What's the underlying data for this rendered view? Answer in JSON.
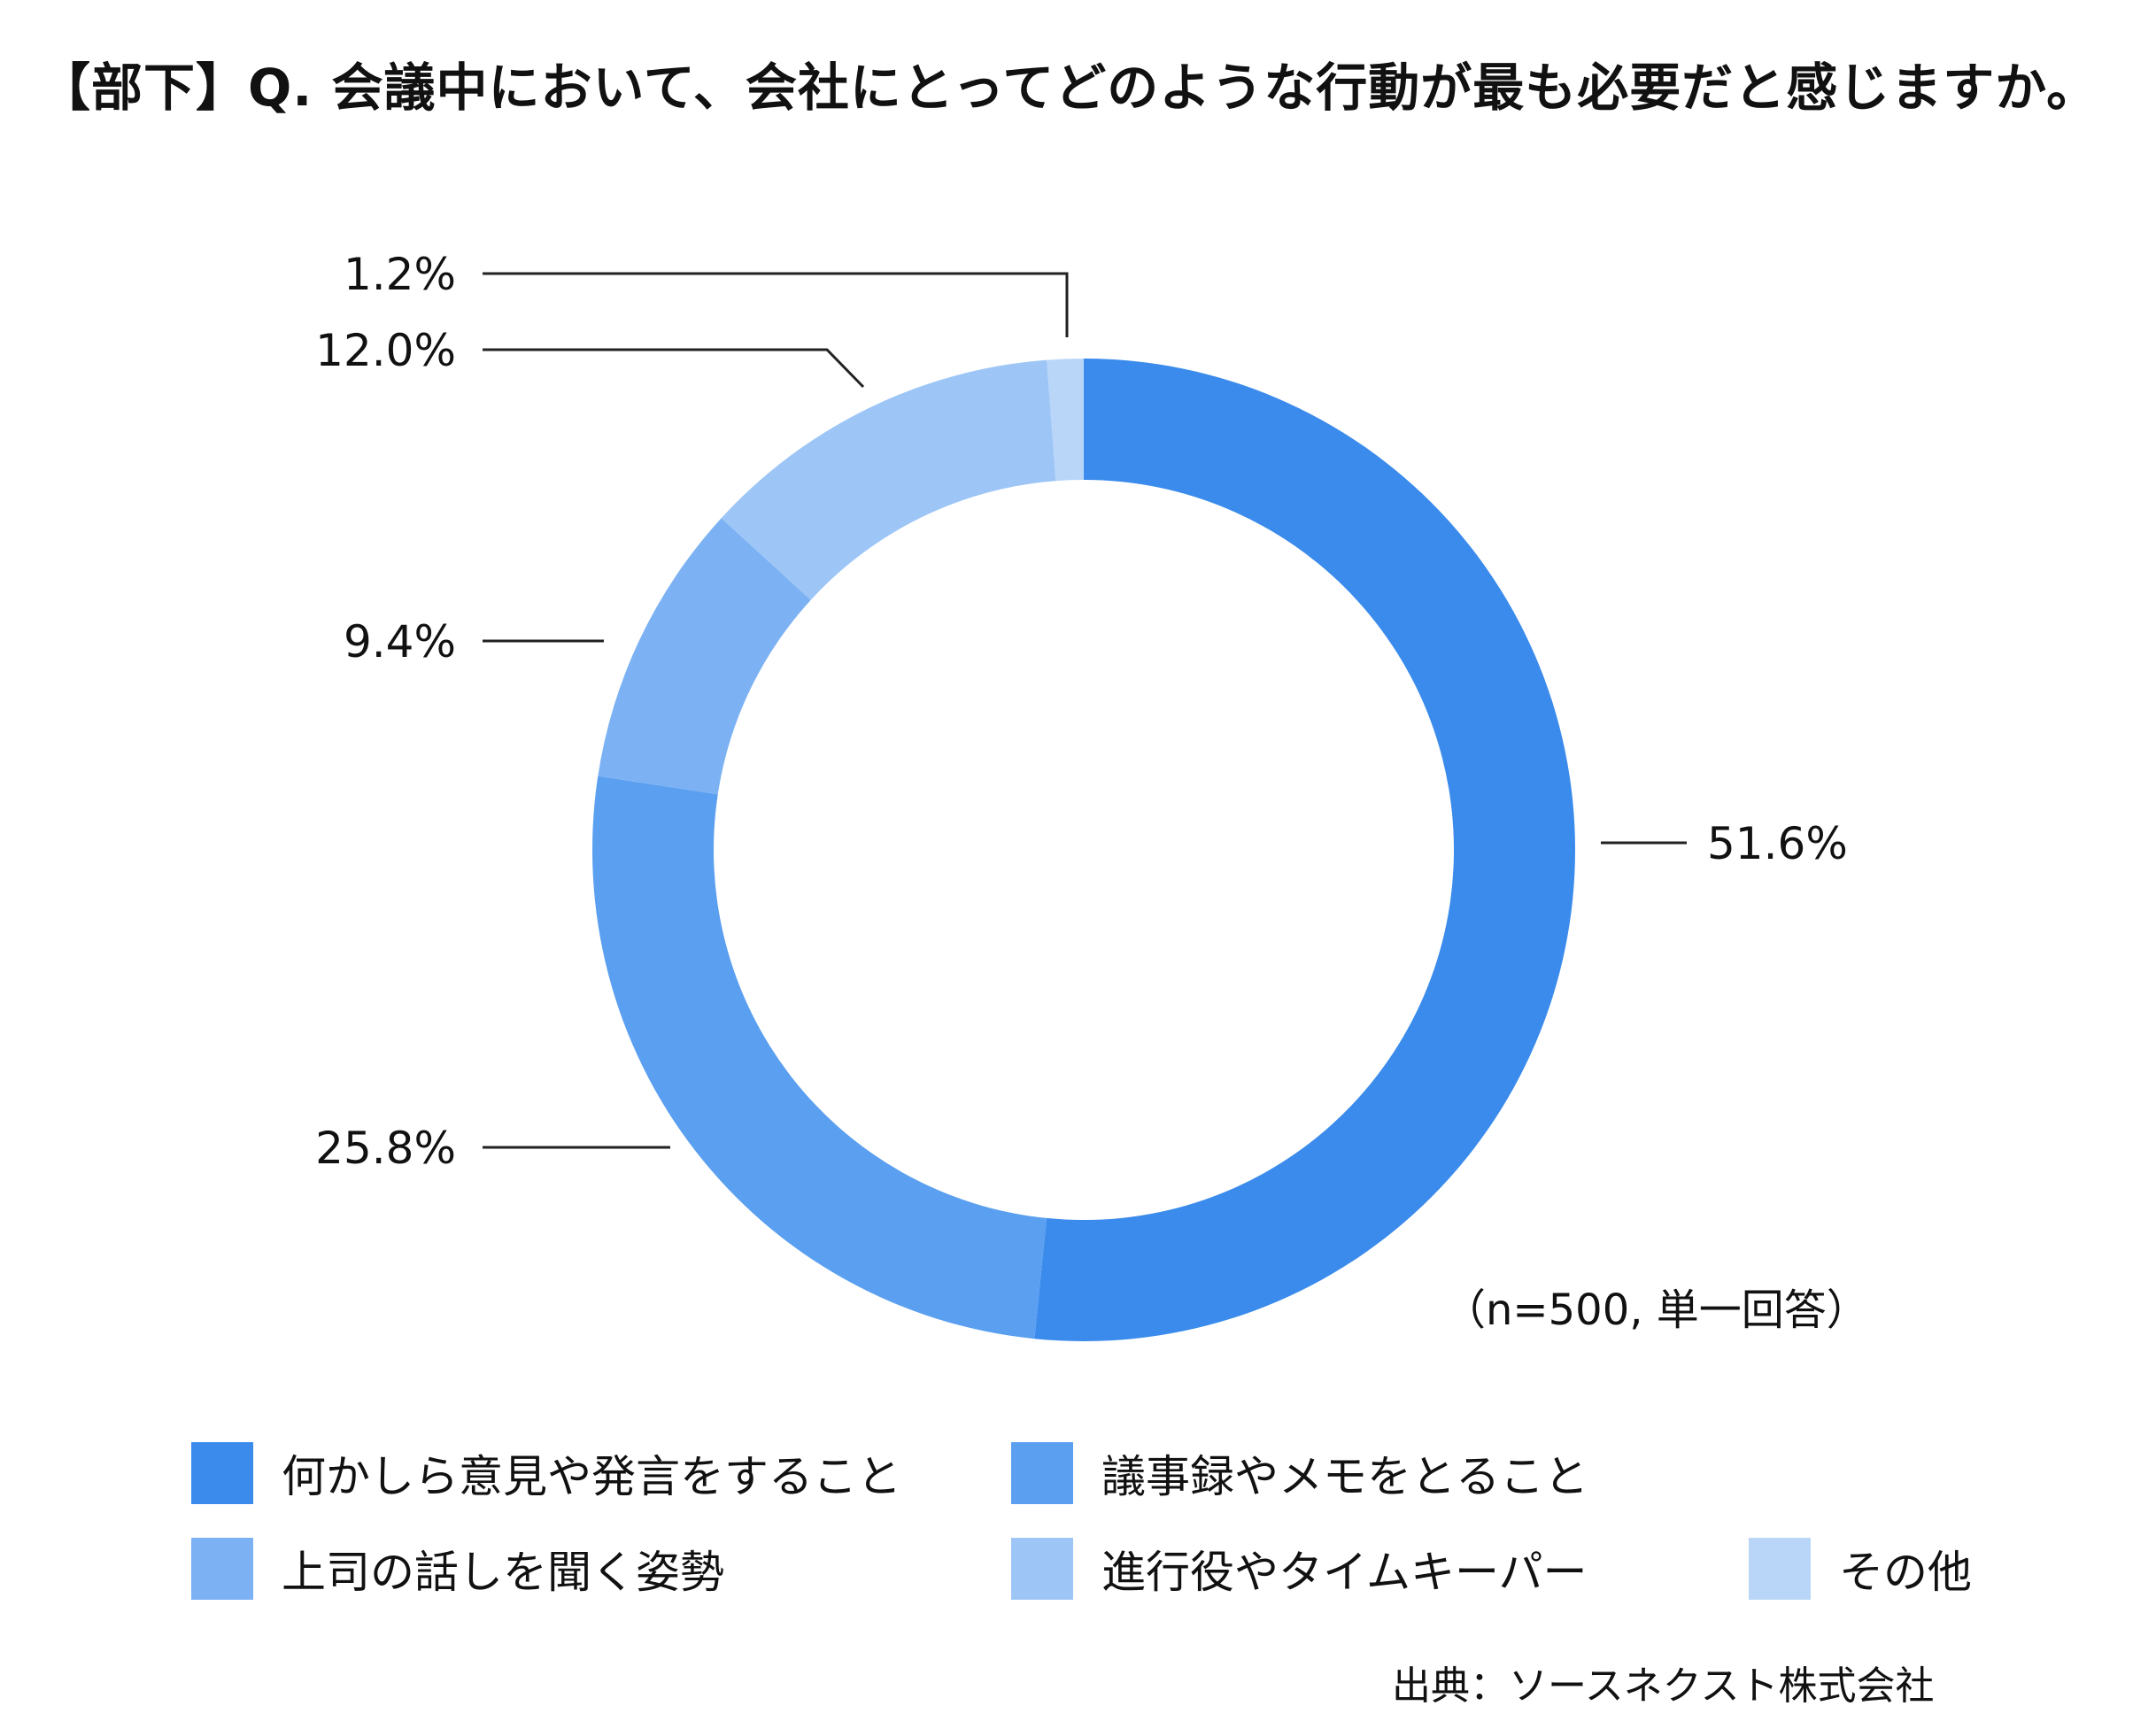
{
  "title": "【部下】Q. 会議中において、会社にとってどのような行動が最も必要だと感じますか。",
  "note": "（n=500, 単一回答）",
  "source": "出典：ソースネクスト株式会社",
  "chart_data": {
    "type": "pie",
    "donut": true,
    "title": "【部下】Q. 会議中において、会社にとってどのような行動が最も必要だと感じますか。",
    "unit": "%",
    "categories": [
      "何かしら意見や発言をすること",
      "議事録やメモをとること",
      "上司の話しを聞く姿勢",
      "進行役やタイムキーパー",
      "その他"
    ],
    "values": [
      51.6,
      25.8,
      9.4,
      12.0,
      1.2
    ],
    "labels": [
      "51.6%",
      "25.8%",
      "9.4%",
      "12.0%",
      "1.2%"
    ],
    "colors": [
      "#3a8bec",
      "#5a9ff0",
      "#7cb2f3",
      "#9dc6f7",
      "#b9d6f9"
    ],
    "legend_position": "bottom"
  }
}
